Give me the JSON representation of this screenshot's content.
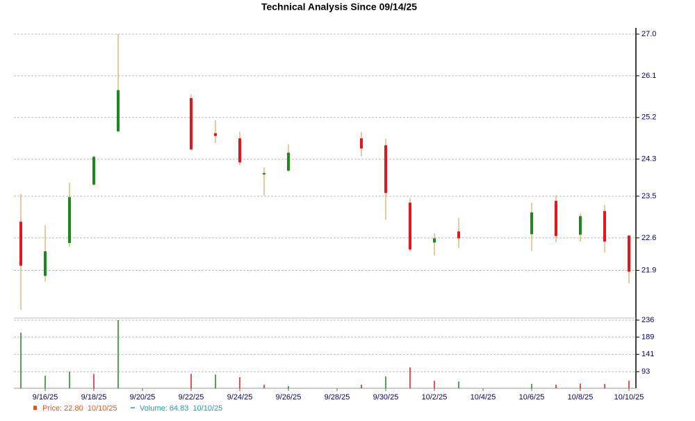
{
  "chart_data": {
    "type": "candlestick",
    "title": "Technical Analysis Since 09/14/25",
    "x": [
      "9/15/25",
      "9/16/25",
      "9/17/25",
      "9/18/25",
      "9/19/25",
      "9/22/25",
      "9/23/25",
      "9/24/25",
      "9/25/25",
      "9/26/25",
      "9/29/25",
      "9/30/25",
      "10/1/25",
      "10/2/25",
      "10/3/25",
      "10/6/25",
      "10/7/25",
      "10/8/25",
      "10/9/25",
      "10/10/25"
    ],
    "open": [
      22.95,
      21.78,
      22.49,
      23.75,
      24.9,
      25.62,
      24.86,
      24.75,
      23.97,
      24.05,
      24.75,
      24.6,
      23.36,
      22.5,
      22.74,
      22.68,
      23.4,
      22.67,
      23.18,
      22.65
    ],
    "high": [
      23.55,
      22.88,
      23.79,
      24.38,
      27.0,
      25.7,
      25.14,
      24.89,
      24.12,
      24.62,
      24.89,
      24.74,
      23.46,
      22.7,
      23.03,
      23.36,
      23.52,
      23.12,
      23.31,
      22.67
    ],
    "low": [
      21.05,
      21.66,
      22.41,
      23.73,
      24.9,
      24.5,
      24.65,
      24.17,
      23.52,
      24.03,
      24.36,
      22.99,
      22.31,
      22.22,
      22.38,
      22.32,
      22.5,
      22.52,
      22.28,
      21.62
    ],
    "close": [
      22.0,
      22.31,
      23.48,
      24.35,
      25.79,
      24.51,
      24.8,
      24.23,
      24.0,
      24.44,
      24.53,
      23.57,
      22.35,
      22.59,
      22.59,
      23.15,
      22.64,
      23.07,
      22.52,
      21.87
    ],
    "up_color": "#1a8a1a",
    "down_color": "#e8141c",
    "wick_color": "#d89040",
    "ylim": [
      20.9,
      27.0
    ],
    "yticks": [
      21.9,
      22.6,
      23.5,
      24.3,
      25.2,
      26.1,
      {
        "value": 27.0,
        "label": "27.0"
      }
    ],
    "xticks": [
      "9/16/25",
      "9/18/25",
      "9/20/25",
      "9/22/25",
      "9/24/25",
      "9/26/25",
      "9/28/25",
      "9/30/25",
      "10/2/25",
      "10/4/25",
      "10/6/25",
      "10/8/25",
      "10/10/25"
    ],
    "grid": true,
    "volume": {
      "values": [
        201,
        82,
        93,
        87,
        236,
        87,
        85,
        78,
        57,
        53,
        57,
        80,
        105,
        68,
        66,
        59,
        57,
        60,
        59,
        68
      ],
      "colors": [
        "#1a8a1a",
        "#1a8a1a",
        "#1a8a1a",
        "#e8141c",
        "#1a8a1a",
        "#e8141c",
        "#1a8a1a",
        "#e8141c",
        "#e8141c",
        "#1a8a1a",
        "#e8141c",
        "#1a8a1a",
        "#e8141c",
        "#e8141c",
        "#1a8a1a",
        "#1a8a1a",
        "#e8141c",
        "#e8141c",
        "#e8141c",
        "#e8141c"
      ],
      "ylim": [
        47,
        236
      ],
      "yticks": [
        93,
        141,
        189,
        236
      ]
    },
    "legend": [
      {
        "name": "Price: 22.80  10/10/25",
        "color": "#e8541c"
      },
      {
        "name": "Volume: 64.83  10/10/25",
        "color": "#20a0a0"
      }
    ]
  }
}
